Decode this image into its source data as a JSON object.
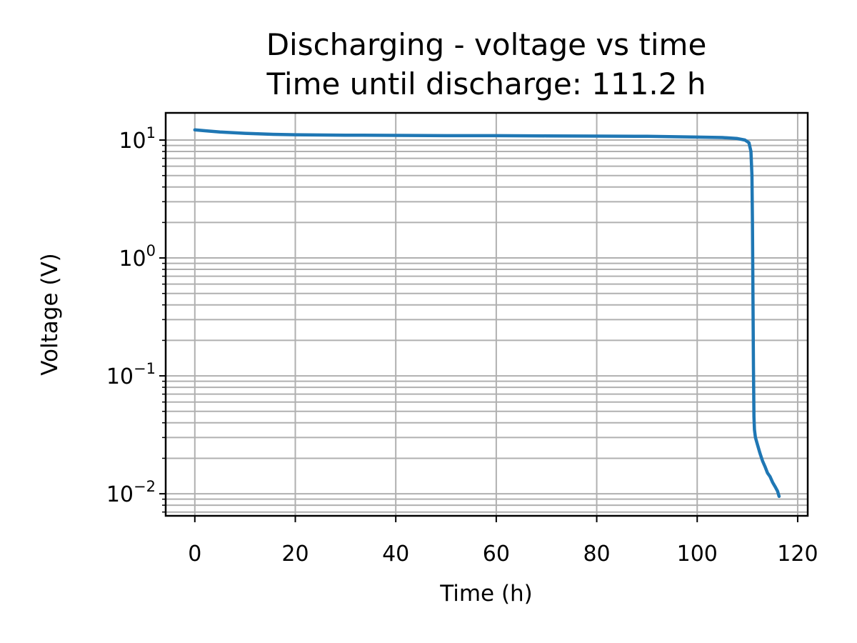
{
  "chart_data": {
    "type": "line",
    "title": "Discharging - voltage vs time",
    "subtitle": "Time until discharge: 111.2 h",
    "xlabel": "Time (h)",
    "ylabel": "Voltage (V)",
    "xlim": [
      -5.8,
      122
    ],
    "ylim": [
      0.0065,
      17
    ],
    "y_scale": "log",
    "grid": true,
    "x_ticks": [
      0,
      20,
      40,
      60,
      80,
      100,
      120
    ],
    "x_tick_labels": [
      "0",
      "20",
      "40",
      "60",
      "80",
      "100",
      "120"
    ],
    "y_ticks": [
      0.01,
      0.1,
      1,
      10
    ],
    "y_tick_labels": [
      {
        "base": "10",
        "exp": "−2"
      },
      {
        "base": "10",
        "exp": "−1"
      },
      {
        "base": "10",
        "exp": "0"
      },
      {
        "base": "10",
        "exp": "1"
      }
    ],
    "series": [
      {
        "color": "#1f77b4",
        "x": [
          0,
          2,
          5,
          10,
          15,
          20,
          30,
          40,
          50,
          60,
          70,
          80,
          90,
          100,
          105,
          108,
          109.5,
          110.3,
          110.7,
          110.9,
          111.0,
          111.1,
          111.2,
          111.25,
          111.3,
          111.4,
          111.6,
          112.0,
          112.5,
          113.0,
          113.5,
          114.0,
          114.5,
          115.0,
          115.5,
          116.0,
          116.3
        ],
        "y": [
          12.2,
          12.0,
          11.7,
          11.4,
          11.2,
          11.1,
          11.0,
          10.95,
          10.9,
          10.9,
          10.85,
          10.8,
          10.75,
          10.6,
          10.5,
          10.3,
          10.0,
          9.5,
          8.0,
          5.0,
          2.0,
          0.5,
          0.12,
          0.07,
          0.045,
          0.035,
          0.03,
          0.026,
          0.022,
          0.019,
          0.017,
          0.015,
          0.014,
          0.0125,
          0.0115,
          0.0105,
          0.0095
        ]
      }
    ]
  }
}
